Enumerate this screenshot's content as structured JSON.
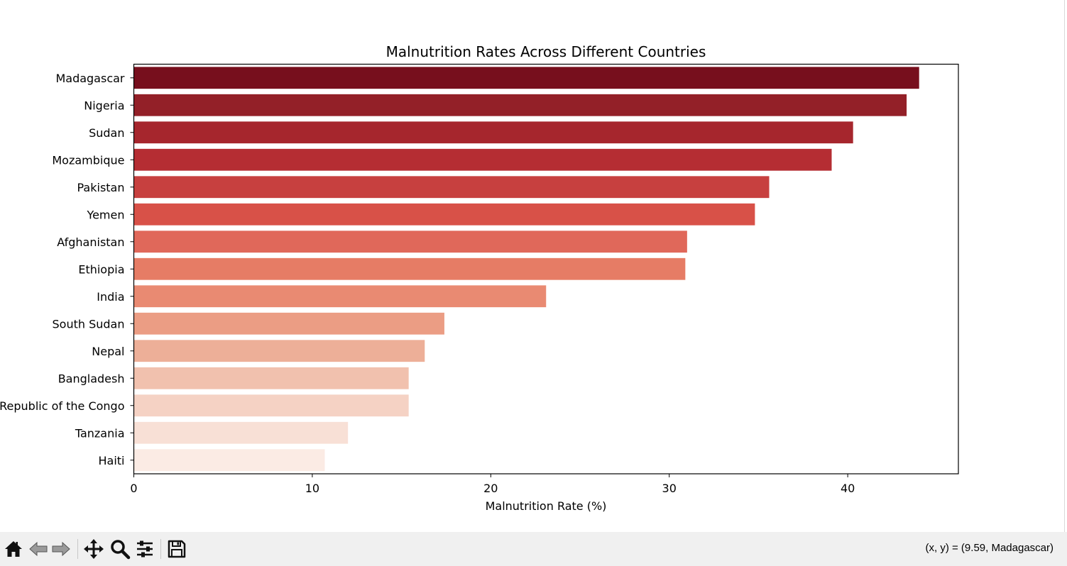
{
  "colors": {
    "bar_gradient": [
      "#770f1d",
      "#fbebe4"
    ],
    "toolbar_bg": "#f0f0f0",
    "axis": "#000000"
  },
  "chart_data": {
    "type": "bar",
    "orientation": "horizontal",
    "title": "Malnutrition Rates Across Different Countries",
    "xlabel": "Malnutrition Rate (%)",
    "ylabel": "",
    "xlim": [
      0,
      46.2
    ],
    "xticks": [
      0,
      10,
      20,
      30,
      40
    ],
    "grid": false,
    "categories": [
      "Madagascar",
      "Nigeria",
      "Sudan",
      "Mozambique",
      "Pakistan",
      "Yemen",
      "Afghanistan",
      "Ethiopia",
      "India",
      "South Sudan",
      "Nepal",
      "Bangladesh",
      "Democratic Republic of the Congo",
      "Tanzania",
      "Haiti"
    ],
    "values": [
      44.0,
      43.3,
      40.3,
      39.1,
      35.6,
      34.8,
      31.0,
      30.9,
      23.1,
      17.4,
      16.3,
      15.4,
      15.4,
      12.0,
      10.7
    ],
    "colors": [
      "#770f1d",
      "#932028",
      "#a6262d",
      "#b52d33",
      "#c7403f",
      "#d85148",
      "#e0685a",
      "#e67c65",
      "#e98a72",
      "#eb9d84",
      "#edaf98",
      "#f1c1ae",
      "#f5d2c4",
      "#f8e0d6",
      "#fbebe4"
    ]
  },
  "toolbar": {
    "home_icon": "home-icon",
    "back_icon": "back-arrow-icon",
    "forward_icon": "forward-arrow-icon",
    "pan_icon": "move-icon",
    "zoom_icon": "magnifier-icon",
    "configure_icon": "sliders-icon",
    "save_icon": "floppy-disk-icon",
    "coord_readout": "(x, y) = (9.59, Madagascar)"
  }
}
